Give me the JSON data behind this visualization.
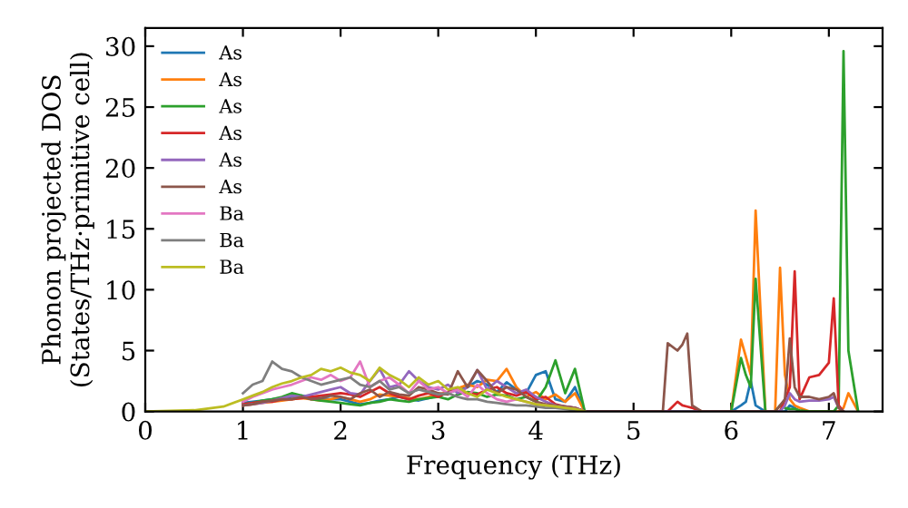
{
  "chart_data": {
    "type": "line",
    "xlabel": "Frequency (THz)",
    "ylabel": "Phonon projected DOS\n(States/THz·primitive cell)",
    "xlim": [
      0,
      7.55
    ],
    "xticks": [
      0,
      1,
      2,
      3,
      4,
      5,
      6,
      7
    ],
    "ylim": [
      0,
      31.5
    ],
    "yticks": [
      0,
      5,
      10,
      15,
      20,
      25,
      30
    ],
    "grid": false,
    "legend": "top left",
    "marker": "none",
    "line_style": "solid",
    "series": [
      {
        "name": "As",
        "color": "#1f77b4",
        "x": [
          1.0,
          1.1,
          1.2,
          1.3,
          1.4,
          1.5,
          1.6,
          1.7,
          1.8,
          1.9,
          2.0,
          2.1,
          2.2,
          2.3,
          2.4,
          2.5,
          2.6,
          2.7,
          2.8,
          2.9,
          3.0,
          3.1,
          3.2,
          3.3,
          3.4,
          3.5,
          3.6,
          3.7,
          3.8,
          3.9,
          4.0,
          4.1,
          4.2,
          4.3,
          4.4,
          4.5,
          6.0,
          6.1,
          6.15,
          6.2,
          6.25,
          6.35,
          6.55,
          6.6,
          6.65,
          6.7
        ],
        "values": [
          0.7,
          0.8,
          0.9,
          1.0,
          1.1,
          1.2,
          1.3,
          1.2,
          1.1,
          1.0,
          1.0,
          0.8,
          0.6,
          0.7,
          0.9,
          1.0,
          1.2,
          1.0,
          0.9,
          1.1,
          1.3,
          1.5,
          1.8,
          2.0,
          2.5,
          2.2,
          1.6,
          2.4,
          1.8,
          1.5,
          3.0,
          3.3,
          1.0,
          0.8,
          2.0,
          0,
          0,
          0.5,
          0.8,
          2.5,
          0.5,
          0,
          0,
          0.5,
          0.3,
          0
        ]
      },
      {
        "name": "As",
        "color": "#ff7f0e",
        "x": [
          1.0,
          1.1,
          1.2,
          1.3,
          1.4,
          1.5,
          1.6,
          1.7,
          1.8,
          1.9,
          2.0,
          2.1,
          2.2,
          2.3,
          2.4,
          2.5,
          2.6,
          2.7,
          2.8,
          2.9,
          3.0,
          3.1,
          3.2,
          3.3,
          3.4,
          3.5,
          3.6,
          3.7,
          3.8,
          3.9,
          4.0,
          4.1,
          4.2,
          4.3,
          4.4,
          4.5,
          6.0,
          6.1,
          6.15,
          6.2,
          6.25,
          6.35,
          6.45,
          6.5,
          6.55,
          6.6,
          6.65,
          6.7,
          6.8,
          7.1,
          7.15,
          7.2,
          7.3
        ],
        "values": [
          0.5,
          0.6,
          0.7,
          0.8,
          0.9,
          1.0,
          1.1,
          1.0,
          0.9,
          1.0,
          1.2,
          1.0,
          0.8,
          1.0,
          1.4,
          1.3,
          1.2,
          1.1,
          1.0,
          1.2,
          1.4,
          1.6,
          1.9,
          2.2,
          2.0,
          2.6,
          2.5,
          3.5,
          2.0,
          1.2,
          1.6,
          1.0,
          1.4,
          0.8,
          1.5,
          0,
          0,
          5.9,
          4.5,
          3.0,
          16.5,
          0,
          0,
          11.8,
          3.0,
          1.0,
          0.5,
          0.3,
          0,
          0,
          0.3,
          1.5,
          0
        ]
      },
      {
        "name": "As",
        "color": "#2ca02c",
        "x": [
          1.0,
          1.1,
          1.2,
          1.3,
          1.4,
          1.5,
          1.6,
          1.7,
          1.8,
          1.9,
          2.0,
          2.1,
          2.2,
          2.3,
          2.4,
          2.5,
          2.6,
          2.7,
          2.8,
          2.9,
          3.0,
          3.1,
          3.2,
          3.3,
          3.4,
          3.5,
          3.6,
          3.7,
          3.8,
          3.9,
          4.0,
          4.1,
          4.2,
          4.3,
          4.4,
          4.5,
          6.0,
          6.1,
          6.15,
          6.2,
          6.25,
          6.35,
          6.45,
          6.5,
          6.55,
          6.6,
          6.65,
          6.7,
          6.8,
          7.05,
          7.1,
          7.15,
          7.2,
          7.3
        ],
        "values": [
          0.6,
          0.7,
          0.9,
          1.0,
          1.2,
          1.5,
          1.3,
          1.0,
          0.9,
          0.8,
          0.7,
          0.6,
          0.5,
          0.7,
          0.8,
          1.0,
          0.9,
          0.8,
          1.0,
          1.1,
          1.2,
          1.0,
          1.4,
          1.6,
          1.5,
          1.2,
          1.4,
          1.3,
          1.0,
          1.2,
          0.8,
          2.0,
          4.2,
          1.5,
          3.5,
          0,
          0,
          4.4,
          3.0,
          2.0,
          10.9,
          0,
          0,
          0.5,
          0.3,
          0.2,
          0.2,
          0.1,
          0,
          0,
          0.5,
          29.6,
          5.0,
          0
        ]
      },
      {
        "name": "As",
        "color": "#d62728",
        "x": [
          1.0,
          1.1,
          1.2,
          1.3,
          1.4,
          1.5,
          1.6,
          1.7,
          1.8,
          1.9,
          2.0,
          2.1,
          2.2,
          2.3,
          2.4,
          2.5,
          2.6,
          2.7,
          2.8,
          2.9,
          3.0,
          3.1,
          3.2,
          3.3,
          3.4,
          3.5,
          3.6,
          3.7,
          3.8,
          3.9,
          4.0,
          4.1,
          4.2,
          4.3,
          4.4,
          4.5,
          5.35,
          5.45,
          5.5,
          5.55,
          5.6,
          5.7,
          6.5,
          6.55,
          6.6,
          6.65,
          6.7,
          6.8,
          6.9,
          7.0,
          7.05,
          7.1,
          7.15
        ],
        "values": [
          0.6,
          0.7,
          0.8,
          0.8,
          1.0,
          1.0,
          1.1,
          1.2,
          1.3,
          1.4,
          1.5,
          1.4,
          1.2,
          1.6,
          2.0,
          1.5,
          1.2,
          1.0,
          1.3,
          1.5,
          1.2,
          1.6,
          1.8,
          1.5,
          1.4,
          1.8,
          2.0,
          1.5,
          1.3,
          1.6,
          1.0,
          1.2,
          0.6,
          0.4,
          0.3,
          0,
          0,
          0.8,
          0.5,
          0.4,
          0.3,
          0,
          0,
          1.0,
          2.0,
          11.5,
          1.0,
          2.8,
          3.0,
          4.0,
          9.3,
          0.5,
          0
        ]
      },
      {
        "name": "As",
        "color": "#9467bd",
        "x": [
          1.0,
          1.1,
          1.2,
          1.3,
          1.4,
          1.5,
          1.6,
          1.7,
          1.8,
          1.9,
          2.0,
          2.1,
          2.2,
          2.3,
          2.4,
          2.5,
          2.6,
          2.7,
          2.8,
          2.9,
          3.0,
          3.1,
          3.2,
          3.3,
          3.4,
          3.5,
          3.6,
          3.7,
          3.8,
          3.9,
          4.0,
          4.1,
          4.2,
          4.3,
          4.4,
          4.5,
          6.5,
          6.55,
          6.6,
          6.65,
          6.7,
          6.8,
          6.9,
          7.0,
          7.05,
          7.1,
          7.15
        ],
        "values": [
          0.5,
          0.6,
          0.7,
          0.9,
          1.1,
          1.3,
          1.2,
          1.4,
          1.6,
          1.8,
          2.0,
          1.5,
          1.4,
          2.5,
          3.5,
          2.0,
          2.2,
          3.3,
          2.5,
          2.0,
          1.8,
          2.2,
          1.5,
          2.0,
          3.4,
          1.8,
          2.5,
          2.0,
          1.5,
          1.8,
          1.2,
          0.8,
          0.5,
          0.4,
          0.3,
          0,
          0,
          0.5,
          1.5,
          1.0,
          0.8,
          0.9,
          0.9,
          1.0,
          1.2,
          0.3,
          0
        ]
      },
      {
        "name": "As",
        "color": "#8c564b",
        "x": [
          1.0,
          1.1,
          1.2,
          1.3,
          1.4,
          1.5,
          1.6,
          1.7,
          1.8,
          1.9,
          2.0,
          2.1,
          2.2,
          2.3,
          2.4,
          2.5,
          2.6,
          2.7,
          2.8,
          2.9,
          3.0,
          3.1,
          3.2,
          3.3,
          3.4,
          3.5,
          3.6,
          3.7,
          3.8,
          3.9,
          4.0,
          4.1,
          4.2,
          4.3,
          4.4,
          4.5,
          5.3,
          5.35,
          5.45,
          5.5,
          5.55,
          5.6,
          5.7,
          6.45,
          6.5,
          6.55,
          6.6,
          6.65,
          6.7,
          6.8,
          6.9,
          7.0,
          7.05,
          7.1,
          7.15
        ],
        "values": [
          0.5,
          0.6,
          0.8,
          0.9,
          1.0,
          1.0,
          1.2,
          1.0,
          1.1,
          1.3,
          1.2,
          1.0,
          1.5,
          1.8,
          1.2,
          1.6,
          1.4,
          1.3,
          2.0,
          1.8,
          1.5,
          1.4,
          3.3,
          2.0,
          3.4,
          2.5,
          1.5,
          2.0,
          1.8,
          1.2,
          0.8,
          0.6,
          0.5,
          0.4,
          0.3,
          0,
          0,
          5.6,
          5.0,
          5.5,
          6.4,
          0.5,
          0,
          0,
          0.5,
          1.0,
          6.0,
          2.0,
          1.2,
          1.2,
          1.0,
          1.2,
          1.5,
          0.3,
          0
        ]
      },
      {
        "name": "Ba",
        "color": "#e377c2",
        "x": [
          1.0,
          1.1,
          1.2,
          1.3,
          1.4,
          1.5,
          1.6,
          1.7,
          1.8,
          1.9,
          2.0,
          2.1,
          2.2,
          2.3,
          2.4,
          2.5,
          2.6,
          2.7,
          2.8,
          2.9,
          3.0,
          3.1,
          3.2,
          3.3,
          3.4,
          3.5,
          3.6,
          3.7,
          3.8,
          3.9,
          4.0,
          4.1,
          4.2,
          4.3,
          4.4,
          4.5
        ],
        "values": [
          0.8,
          1.2,
          1.5,
          1.8,
          2.0,
          2.2,
          2.5,
          2.8,
          2.6,
          3.0,
          2.5,
          2.8,
          4.1,
          2.0,
          2.5,
          2.8,
          2.2,
          1.5,
          2.5,
          1.8,
          2.0,
          1.5,
          1.8,
          1.2,
          2.2,
          1.5,
          1.0,
          0.8,
          1.0,
          0.8,
          0.6,
          0.5,
          0.4,
          0.3,
          0.2,
          0
        ]
      },
      {
        "name": "Ba",
        "color": "#7f7f7f",
        "x": [
          1.0,
          1.1,
          1.2,
          1.3,
          1.4,
          1.5,
          1.6,
          1.7,
          1.8,
          1.9,
          2.0,
          2.1,
          2.2,
          2.3,
          2.4,
          2.5,
          2.6,
          2.7,
          2.8,
          2.9,
          3.0,
          3.1,
          3.2,
          3.3,
          3.4,
          3.5,
          3.6,
          3.7,
          3.8,
          3.9,
          4.0,
          4.1,
          4.2,
          4.3,
          4.4,
          4.5
        ],
        "values": [
          1.5,
          2.2,
          2.5,
          4.1,
          3.5,
          3.3,
          2.8,
          2.5,
          2.2,
          2.4,
          2.6,
          2.8,
          2.2,
          2.0,
          2.5,
          1.8,
          2.0,
          1.5,
          1.8,
          1.6,
          1.4,
          1.5,
          1.2,
          1.0,
          1.0,
          0.8,
          0.7,
          0.6,
          0.5,
          0.5,
          0.4,
          0.3,
          0.3,
          0.2,
          0.1,
          0
        ]
      },
      {
        "name": "Ba",
        "color": "#bcbd22",
        "x": [
          0,
          0.5,
          0.8,
          1.0,
          1.1,
          1.2,
          1.3,
          1.4,
          1.5,
          1.6,
          1.7,
          1.8,
          1.9,
          2.0,
          2.1,
          2.2,
          2.3,
          2.4,
          2.5,
          2.6,
          2.7,
          2.8,
          2.9,
          3.0,
          3.1,
          3.2,
          3.3,
          3.4,
          3.5,
          3.6,
          3.7,
          3.8,
          3.9,
          4.0,
          4.1,
          4.2,
          4.3,
          4.4,
          4.5
        ],
        "values": [
          0,
          0.1,
          0.4,
          1.0,
          1.3,
          1.6,
          2.0,
          2.3,
          2.5,
          2.8,
          3.0,
          3.5,
          3.3,
          3.6,
          3.2,
          3.0,
          2.5,
          3.6,
          3.0,
          2.6,
          2.0,
          2.8,
          2.2,
          2.5,
          1.8,
          2.0,
          1.5,
          1.2,
          1.8,
          1.5,
          1.2,
          1.0,
          0.8,
          0.6,
          0.5,
          0.4,
          0.3,
          0.2,
          0
        ]
      }
    ]
  }
}
